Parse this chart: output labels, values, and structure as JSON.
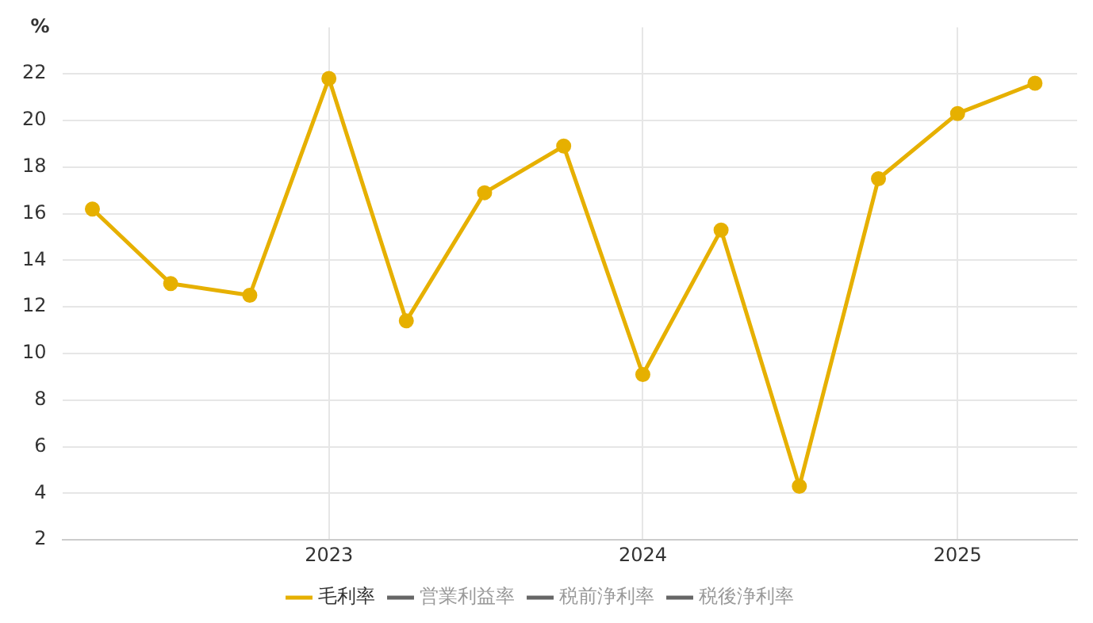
{
  "chart_data": {
    "type": "line",
    "ylabel": "%",
    "x": [
      "2022-04",
      "2022-07",
      "2022-10",
      "2023-01",
      "2023-04",
      "2023-07",
      "2023-10",
      "2024-01",
      "2024-04",
      "2024-07",
      "2024-10",
      "2025-01",
      "2025-04"
    ],
    "series": [
      {
        "name": "毛利率",
        "color": "#e6b000",
        "values": [
          16.2,
          13.0,
          12.5,
          21.8,
          11.4,
          16.9,
          18.9,
          9.1,
          15.3,
          4.3,
          17.5,
          20.3,
          21.6
        ]
      },
      {
        "name": "営業利益率",
        "color": "#666666",
        "values": [
          null,
          null,
          null,
          null,
          null,
          null,
          null,
          null,
          null,
          null,
          null,
          null,
          null
        ]
      },
      {
        "name": "税前浄利率",
        "color": "#666666",
        "values": [
          null,
          null,
          null,
          null,
          null,
          null,
          null,
          null,
          null,
          null,
          null,
          null,
          null
        ]
      },
      {
        "name": "税後浄利率",
        "color": "#666666",
        "values": [
          null,
          null,
          null,
          null,
          null,
          null,
          null,
          null,
          null,
          null,
          null,
          null,
          null
        ]
      }
    ],
    "xlim": [
      "2022-02-25",
      "2025-05-20"
    ],
    "xticks": [
      "2023",
      "2024",
      "2025"
    ],
    "ylim": [
      2,
      24
    ],
    "yticks": [
      2,
      4,
      6,
      8,
      10,
      12,
      14,
      16,
      18,
      20,
      22
    ],
    "grid": true,
    "legend": "bottom",
    "marker": "circle",
    "line_style": "solid"
  }
}
